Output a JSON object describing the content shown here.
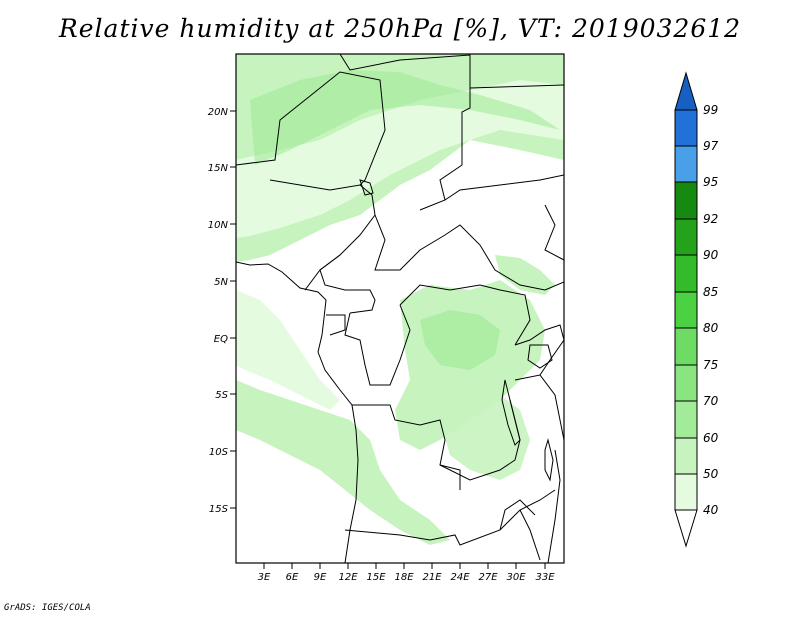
{
  "title": "Relative humidity at 250hPa [%], VT: 2019032612",
  "credit": "GrADS: IGES/COLA",
  "map": {
    "lat_labels": [
      "20N",
      "15N",
      "10N",
      "5N",
      "EQ",
      "5S",
      "10S",
      "15S"
    ],
    "lon_labels": [
      "3E",
      "6E",
      "9E",
      "12E",
      "15E",
      "18E",
      "21E",
      "24E",
      "27E",
      "30E",
      "33E"
    ]
  },
  "colorbar": {
    "levels": [
      "40",
      "50",
      "60",
      "70",
      "75",
      "80",
      "85",
      "90",
      "92",
      "95",
      "97",
      "99"
    ],
    "colors": [
      "#ffffff",
      "#e5fbe0",
      "#c6f3be",
      "#a2eb98",
      "#8ae580",
      "#6edb64",
      "#4bd141",
      "#33bb2a",
      "#23a21a",
      "#168a10",
      "#4aa0e8",
      "#2171d8",
      "#1660c4"
    ]
  },
  "colors": {
    "land_line": "#000000",
    "humid_light": "#c6f3be",
    "humid_faint": "#e5fbe0",
    "humid_mid": "#a2eb98"
  }
}
